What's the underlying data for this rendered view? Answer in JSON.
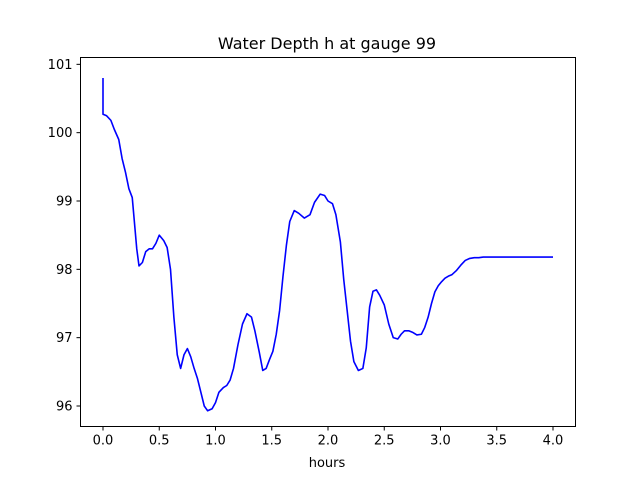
{
  "chart_data": {
    "type": "line",
    "title": "Water Depth h at gauge 99",
    "xlabel": "hours",
    "ylabel": "",
    "xlim": [
      -0.2,
      4.2
    ],
    "ylim": [
      95.7,
      101.1
    ],
    "xticks": [
      0.0,
      0.5,
      1.0,
      1.5,
      2.0,
      2.5,
      3.0,
      3.5,
      4.0
    ],
    "xtick_labels": [
      "0.0",
      "0.5",
      "1.0",
      "1.5",
      "2.0",
      "2.5",
      "3.0",
      "3.5",
      "4.0"
    ],
    "yticks": [
      96,
      97,
      98,
      99,
      100,
      101
    ],
    "ytick_labels": [
      "96",
      "97",
      "98",
      "99",
      "100",
      "101"
    ],
    "grid": false,
    "series": [
      {
        "color": "#0000ff",
        "x": [
          0.0,
          0.0,
          0.0,
          0.03,
          0.07,
          0.1,
          0.14,
          0.17,
          0.2,
          0.23,
          0.26,
          0.3,
          0.32,
          0.35,
          0.38,
          0.41,
          0.44,
          0.47,
          0.5,
          0.54,
          0.57,
          0.6,
          0.63,
          0.66,
          0.69,
          0.72,
          0.75,
          0.78,
          0.81,
          0.84,
          0.87,
          0.9,
          0.93,
          0.97,
          1.0,
          1.03,
          1.07,
          1.1,
          1.13,
          1.16,
          1.2,
          1.24,
          1.28,
          1.32,
          1.35,
          1.39,
          1.42,
          1.45,
          1.48,
          1.51,
          1.54,
          1.57,
          1.6,
          1.63,
          1.66,
          1.7,
          1.74,
          1.79,
          1.84,
          1.88,
          1.93,
          1.97,
          2.0,
          2.04,
          2.07,
          2.11,
          2.14,
          2.17,
          2.2,
          2.23,
          2.27,
          2.31,
          2.34,
          2.37,
          2.4,
          2.43,
          2.46,
          2.5,
          2.54,
          2.58,
          2.62,
          2.65,
          2.68,
          2.72,
          2.75,
          2.79,
          2.83,
          2.86,
          2.89,
          2.92,
          2.95,
          2.98,
          3.01,
          3.04,
          3.07,
          3.1,
          3.14,
          3.18,
          3.22,
          3.26,
          3.3,
          3.34,
          3.38,
          3.42,
          3.46,
          3.5,
          3.55,
          3.6,
          3.65,
          3.7,
          3.75,
          3.8,
          3.85,
          3.9,
          3.95,
          4.0
        ],
        "y": [
          100.8,
          100.3,
          100.27,
          100.25,
          100.18,
          100.05,
          99.9,
          99.62,
          99.42,
          99.18,
          99.05,
          98.3,
          98.05,
          98.1,
          98.26,
          98.3,
          98.3,
          98.38,
          98.5,
          98.42,
          98.32,
          98.0,
          97.3,
          96.75,
          96.55,
          96.75,
          96.84,
          96.72,
          96.55,
          96.4,
          96.2,
          96.0,
          95.93,
          95.96,
          96.05,
          96.2,
          96.27,
          96.3,
          96.38,
          96.55,
          96.9,
          97.2,
          97.35,
          97.3,
          97.1,
          96.78,
          96.52,
          96.55,
          96.68,
          96.8,
          97.05,
          97.4,
          97.9,
          98.35,
          98.7,
          98.86,
          98.82,
          98.75,
          98.8,
          98.98,
          99.1,
          99.08,
          99.0,
          98.96,
          98.8,
          98.4,
          97.85,
          97.4,
          96.95,
          96.65,
          96.52,
          96.55,
          96.85,
          97.45,
          97.68,
          97.7,
          97.62,
          97.48,
          97.2,
          97.0,
          96.98,
          97.05,
          97.1,
          97.1,
          97.08,
          97.04,
          97.05,
          97.15,
          97.3,
          97.5,
          97.67,
          97.76,
          97.82,
          97.87,
          97.9,
          97.92,
          97.98,
          98.06,
          98.13,
          98.16,
          98.17,
          98.17,
          98.18,
          98.18,
          98.18,
          98.18,
          98.18,
          98.18,
          98.18,
          98.18,
          98.18,
          98.18,
          98.18,
          98.18,
          98.18,
          98.18
        ]
      }
    ]
  }
}
